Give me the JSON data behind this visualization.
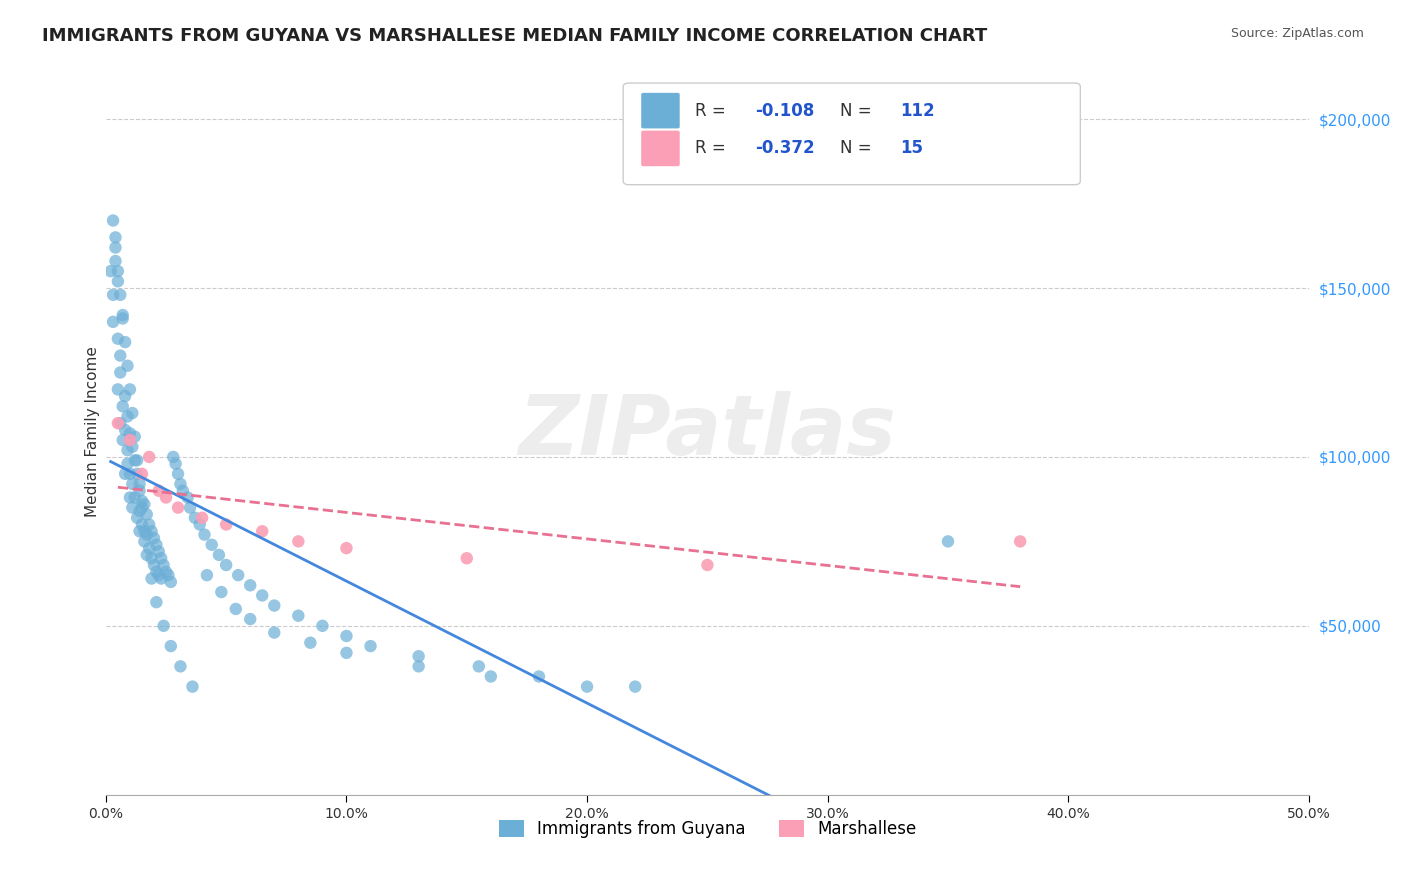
{
  "title": "IMMIGRANTS FROM GUYANA VS MARSHALLESE MEDIAN FAMILY INCOME CORRELATION CHART",
  "source": "Source: ZipAtlas.com",
  "xlabel": "",
  "ylabel": "Median Family Income",
  "xlim": [
    0.0,
    0.5
  ],
  "ylim": [
    0,
    215000
  ],
  "yticks": [
    0,
    50000,
    100000,
    150000,
    200000
  ],
  "ytick_labels": [
    "",
    "$50,000",
    "$100,000",
    "$150,000",
    "$200,000"
  ],
  "xticks": [
    0.0,
    0.1,
    0.2,
    0.3,
    0.4,
    0.5
  ],
  "xtick_labels": [
    "0.0%",
    "10.0%",
    "20.0%",
    "30.0%",
    "40.0%",
    "50.0%"
  ],
  "watermark": "ZIPatlas",
  "guyana_color": "#6baed6",
  "marshallese_color": "#fa9fb5",
  "guyana_R": -0.108,
  "guyana_N": 112,
  "marshallese_R": -0.372,
  "marshallese_N": 15,
  "title_fontsize": 13,
  "background_color": "#ffffff",
  "legend_R_color": "#2255cc",
  "guyana_scatter_x": [
    0.002,
    0.003,
    0.003,
    0.004,
    0.004,
    0.005,
    0.005,
    0.005,
    0.006,
    0.006,
    0.006,
    0.007,
    0.007,
    0.007,
    0.008,
    0.008,
    0.008,
    0.009,
    0.009,
    0.009,
    0.01,
    0.01,
    0.01,
    0.011,
    0.011,
    0.011,
    0.012,
    0.012,
    0.013,
    0.013,
    0.014,
    0.014,
    0.014,
    0.015,
    0.015,
    0.016,
    0.016,
    0.017,
    0.017,
    0.018,
    0.018,
    0.019,
    0.019,
    0.02,
    0.02,
    0.021,
    0.021,
    0.022,
    0.022,
    0.023,
    0.023,
    0.024,
    0.025,
    0.026,
    0.027,
    0.028,
    0.029,
    0.03,
    0.031,
    0.032,
    0.034,
    0.035,
    0.037,
    0.039,
    0.041,
    0.044,
    0.047,
    0.05,
    0.055,
    0.06,
    0.065,
    0.07,
    0.08,
    0.09,
    0.1,
    0.11,
    0.13,
    0.155,
    0.18,
    0.22,
    0.003,
    0.004,
    0.005,
    0.006,
    0.007,
    0.008,
    0.009,
    0.01,
    0.011,
    0.012,
    0.013,
    0.014,
    0.015,
    0.016,
    0.017,
    0.019,
    0.021,
    0.024,
    0.027,
    0.031,
    0.036,
    0.042,
    0.048,
    0.054,
    0.06,
    0.07,
    0.085,
    0.1,
    0.13,
    0.16,
    0.2,
    0.35
  ],
  "guyana_scatter_y": [
    155000,
    140000,
    148000,
    158000,
    165000,
    152000,
    135000,
    120000,
    110000,
    125000,
    130000,
    142000,
    115000,
    105000,
    118000,
    108000,
    95000,
    112000,
    102000,
    98000,
    107000,
    95000,
    88000,
    103000,
    92000,
    85000,
    99000,
    88000,
    95000,
    82000,
    90000,
    84000,
    78000,
    87000,
    80000,
    86000,
    75000,
    83000,
    77000,
    80000,
    73000,
    78000,
    70000,
    76000,
    68000,
    74000,
    66000,
    72000,
    65000,
    70000,
    64000,
    68000,
    66000,
    65000,
    63000,
    100000,
    98000,
    95000,
    92000,
    90000,
    88000,
    85000,
    82000,
    80000,
    77000,
    74000,
    71000,
    68000,
    65000,
    62000,
    59000,
    56000,
    53000,
    50000,
    47000,
    44000,
    41000,
    38000,
    35000,
    32000,
    170000,
    162000,
    155000,
    148000,
    141000,
    134000,
    127000,
    120000,
    113000,
    106000,
    99000,
    92000,
    85000,
    78000,
    71000,
    64000,
    57000,
    50000,
    44000,
    38000,
    32000,
    65000,
    60000,
    55000,
    52000,
    48000,
    45000,
    42000,
    38000,
    35000,
    32000,
    75000
  ],
  "marshallese_scatter_x": [
    0.005,
    0.01,
    0.015,
    0.018,
    0.022,
    0.025,
    0.03,
    0.04,
    0.05,
    0.065,
    0.08,
    0.1,
    0.15,
    0.25,
    0.38
  ],
  "marshallese_scatter_y": [
    110000,
    105000,
    95000,
    100000,
    90000,
    88000,
    85000,
    82000,
    80000,
    78000,
    75000,
    73000,
    70000,
    68000,
    75000
  ]
}
